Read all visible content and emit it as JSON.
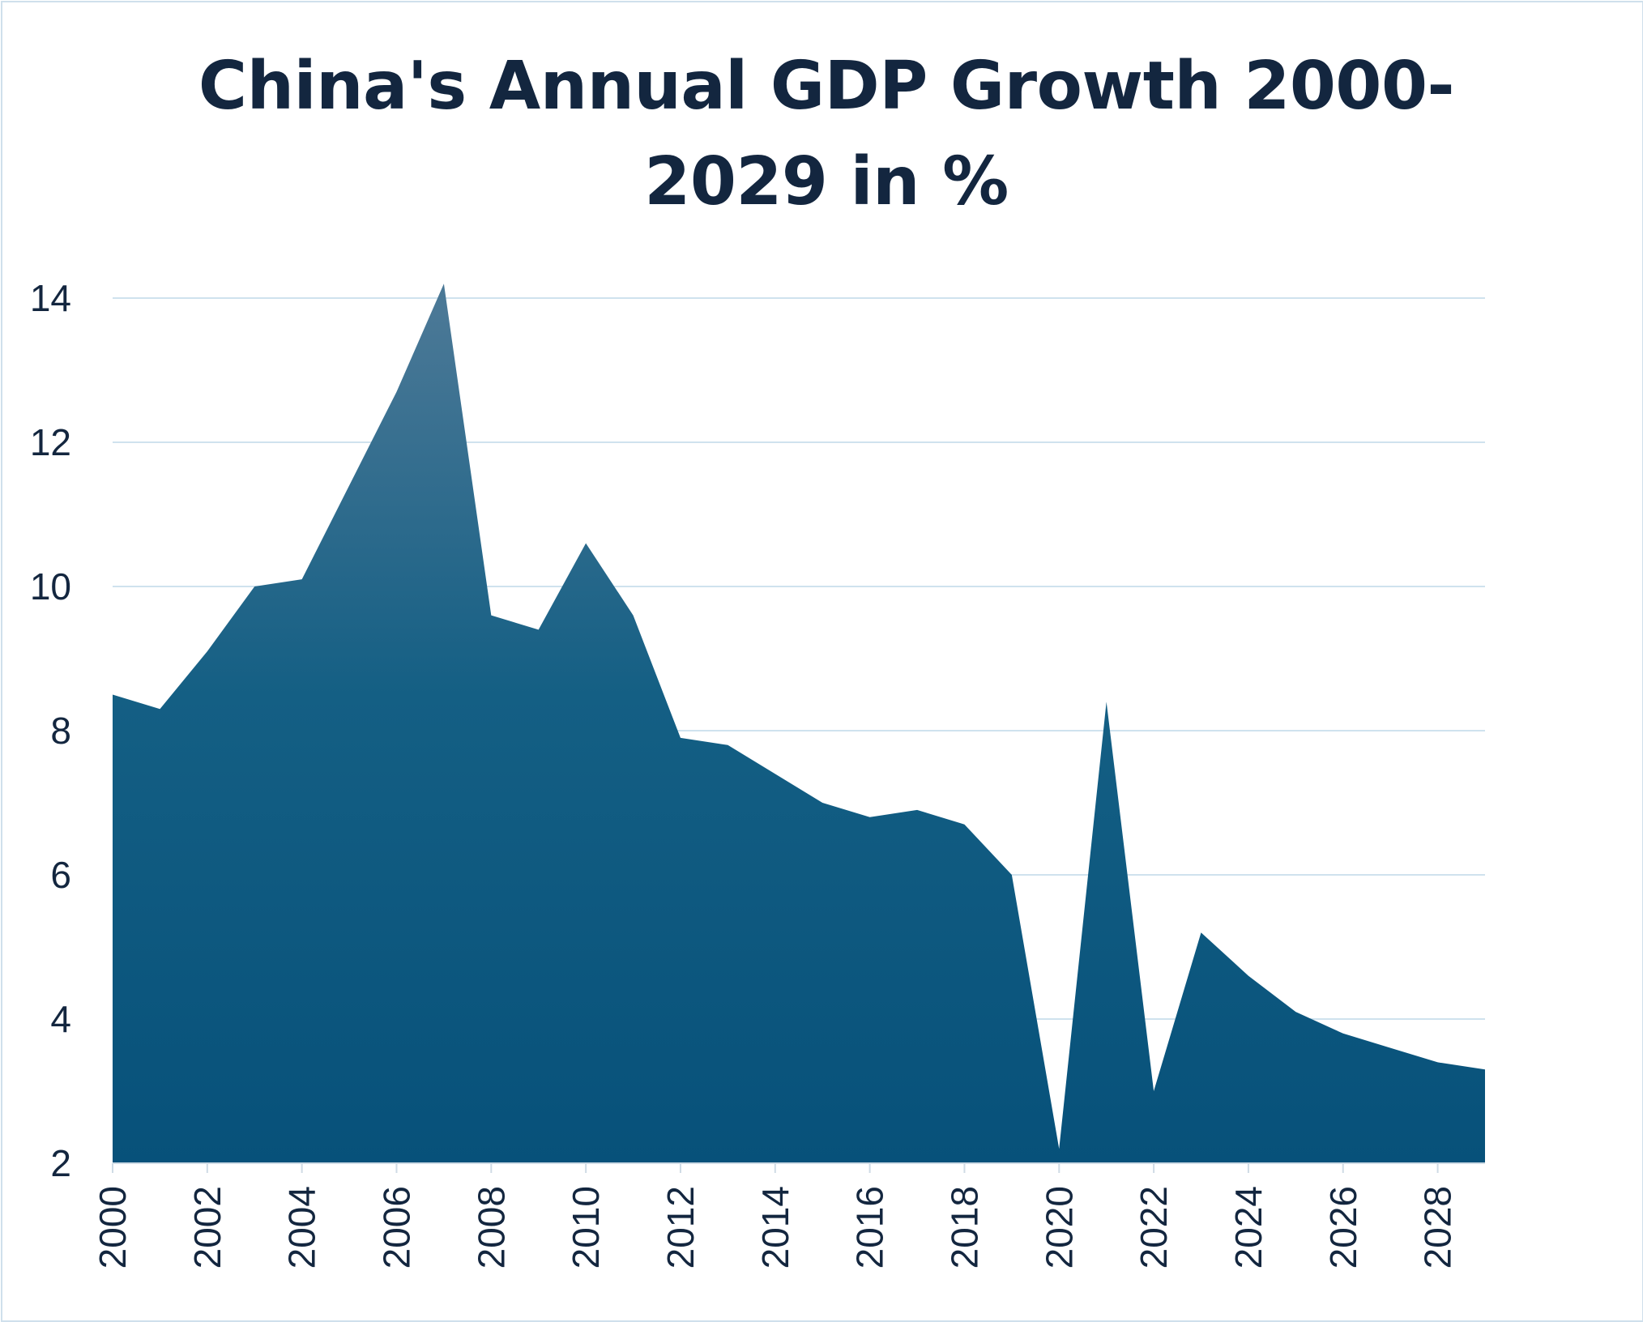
{
  "chart_data": {
    "type": "area",
    "title": "China's Annual GDP Growth 2000-2029 in %",
    "xlabel": "",
    "ylabel": "",
    "x": [
      2000,
      2001,
      2002,
      2003,
      2004,
      2005,
      2006,
      2007,
      2008,
      2009,
      2010,
      2011,
      2012,
      2013,
      2014,
      2015,
      2016,
      2017,
      2018,
      2019,
      2020,
      2021,
      2022,
      2023,
      2024,
      2025,
      2026,
      2027,
      2028,
      2029
    ],
    "series": [
      {
        "name": "GDP growth (%)",
        "values": [
          8.5,
          8.3,
          9.1,
          10.0,
          10.1,
          11.4,
          12.7,
          14.2,
          9.6,
          9.4,
          10.6,
          9.6,
          7.9,
          7.8,
          7.4,
          7.0,
          6.8,
          6.9,
          6.7,
          6.0,
          2.2,
          8.4,
          3.0,
          5.2,
          4.6,
          4.1,
          3.8,
          3.6,
          3.4,
          3.3
        ]
      }
    ],
    "xlim": [
      2000,
      2029
    ],
    "ylim": [
      2,
      14
    ],
    "x_ticks": [
      "2000",
      "2002",
      "2004",
      "2006",
      "2008",
      "2010",
      "2012",
      "2014",
      "2016",
      "2018",
      "2020",
      "2022",
      "2024",
      "2026",
      "2028"
    ],
    "y_ticks": [
      "2",
      "4",
      "6",
      "8",
      "10",
      "12",
      "14"
    ],
    "grid": true,
    "legend": "none",
    "colors": {
      "fill_top": "#4a7896",
      "fill_mid": "#145f84",
      "fill_bottom": "#07517a",
      "grid": "#cfe2ee",
      "axis": "#cfdbe5",
      "text": "#13263f"
    }
  }
}
